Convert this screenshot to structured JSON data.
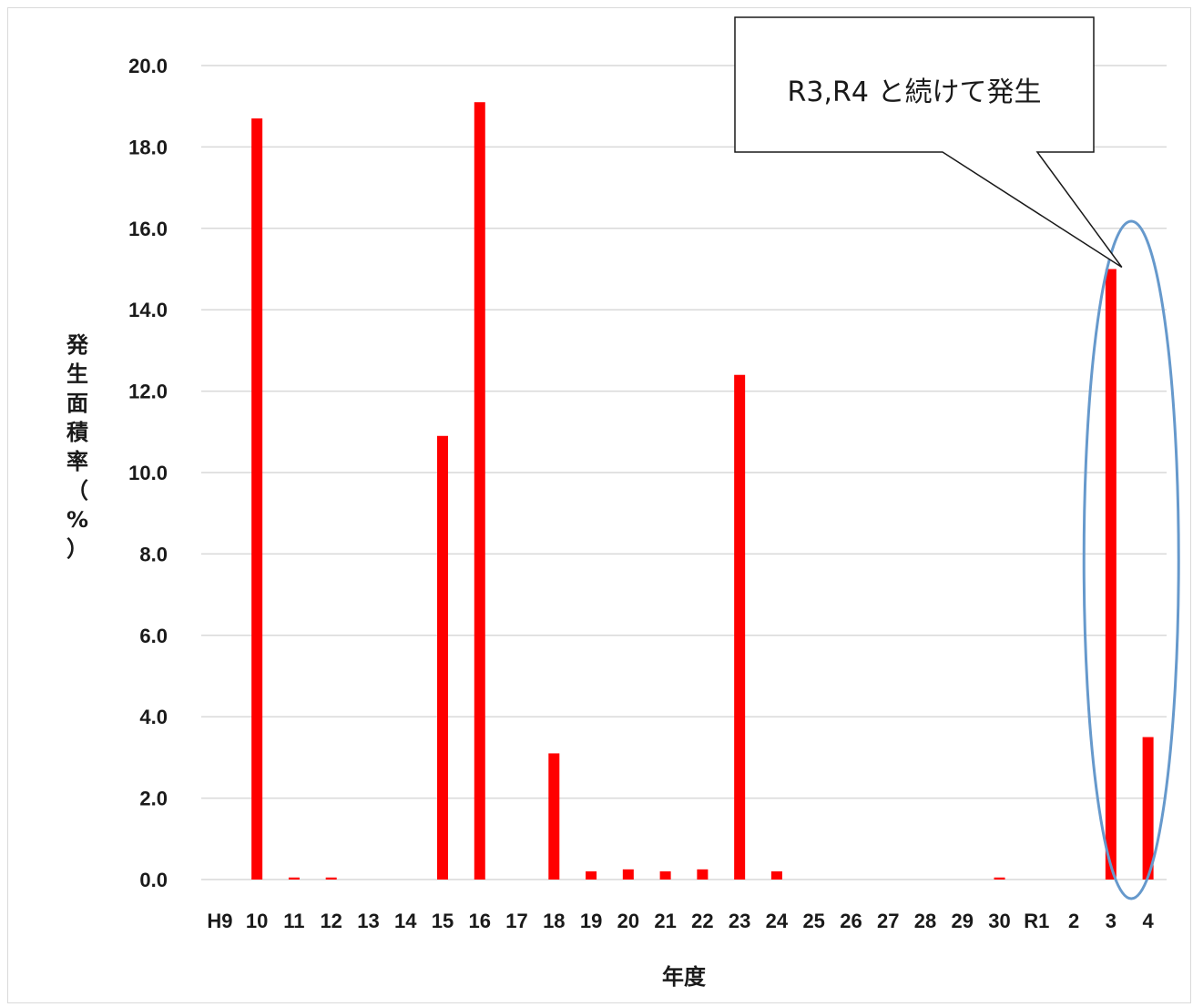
{
  "chart_data": {
    "type": "bar",
    "title": "",
    "xlabel": "年度",
    "ylabel": "発生面積率（%）",
    "categories": [
      "H9",
      "10",
      "11",
      "12",
      "13",
      "14",
      "15",
      "16",
      "17",
      "18",
      "19",
      "20",
      "21",
      "22",
      "23",
      "24",
      "25",
      "26",
      "27",
      "28",
      "29",
      "30",
      "R1",
      "2",
      "3",
      "4"
    ],
    "values": [
      0,
      18.7,
      0.05,
      0.05,
      0,
      0,
      10.9,
      19.1,
      0,
      3.1,
      0.2,
      0.25,
      0.2,
      0.25,
      12.4,
      0.2,
      0,
      0,
      0,
      0,
      0,
      0.05,
      0,
      0,
      15.0,
      3.5
    ],
    "ylim": [
      0,
      20
    ],
    "yticks": [
      "0.0",
      "2.0",
      "4.0",
      "6.0",
      "8.0",
      "10.0",
      "12.0",
      "14.0",
      "16.0",
      "18.0",
      "20.0"
    ],
    "grid": true,
    "bar_color": "#ff0000",
    "gridline_color": "#d9d9d9",
    "annotation": {
      "text": "R3,R4 と続けて発生",
      "highlight": [
        "3",
        "4"
      ],
      "highlight_color": "#6699cc"
    }
  }
}
